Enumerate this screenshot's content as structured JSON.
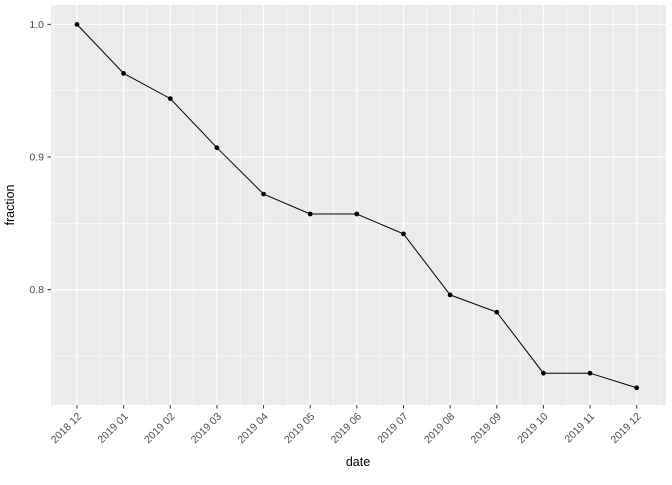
{
  "chart_data": {
    "type": "line",
    "title": "",
    "x": [
      "2018 12",
      "2019 01",
      "2019 02",
      "2019 03",
      "2019 04",
      "2019 05",
      "2019 06",
      "2019 07",
      "2019 08",
      "2019 09",
      "2019 10",
      "2019 11",
      "2019 12"
    ],
    "values": [
      1.0,
      0.963,
      0.944,
      0.907,
      0.872,
      0.857,
      0.857,
      0.842,
      0.796,
      0.783,
      0.737,
      0.737,
      0.726
    ],
    "xlabel": "date",
    "ylabel": "fraction",
    "ylim": [
      0.713,
      1.0146
    ],
    "y_major_ticks": [
      1.0,
      0.9,
      0.8
    ],
    "y_major_tick_labels": [
      "1.0",
      "0.9",
      "0.8"
    ],
    "y_minor_ticks": [
      0.95,
      0.85,
      0.75
    ],
    "grid": "on",
    "legend": "none",
    "style": "ggplot2-gray",
    "colors": {
      "background": "#FFFFFF",
      "panel_bg": "#EBEBEB",
      "grid": "#FFFFFF",
      "line": "#000000",
      "point": "#000000",
      "tick_label": "#4D4D4D",
      "tick_mark": "#333333",
      "axis_title": "#000000"
    }
  }
}
